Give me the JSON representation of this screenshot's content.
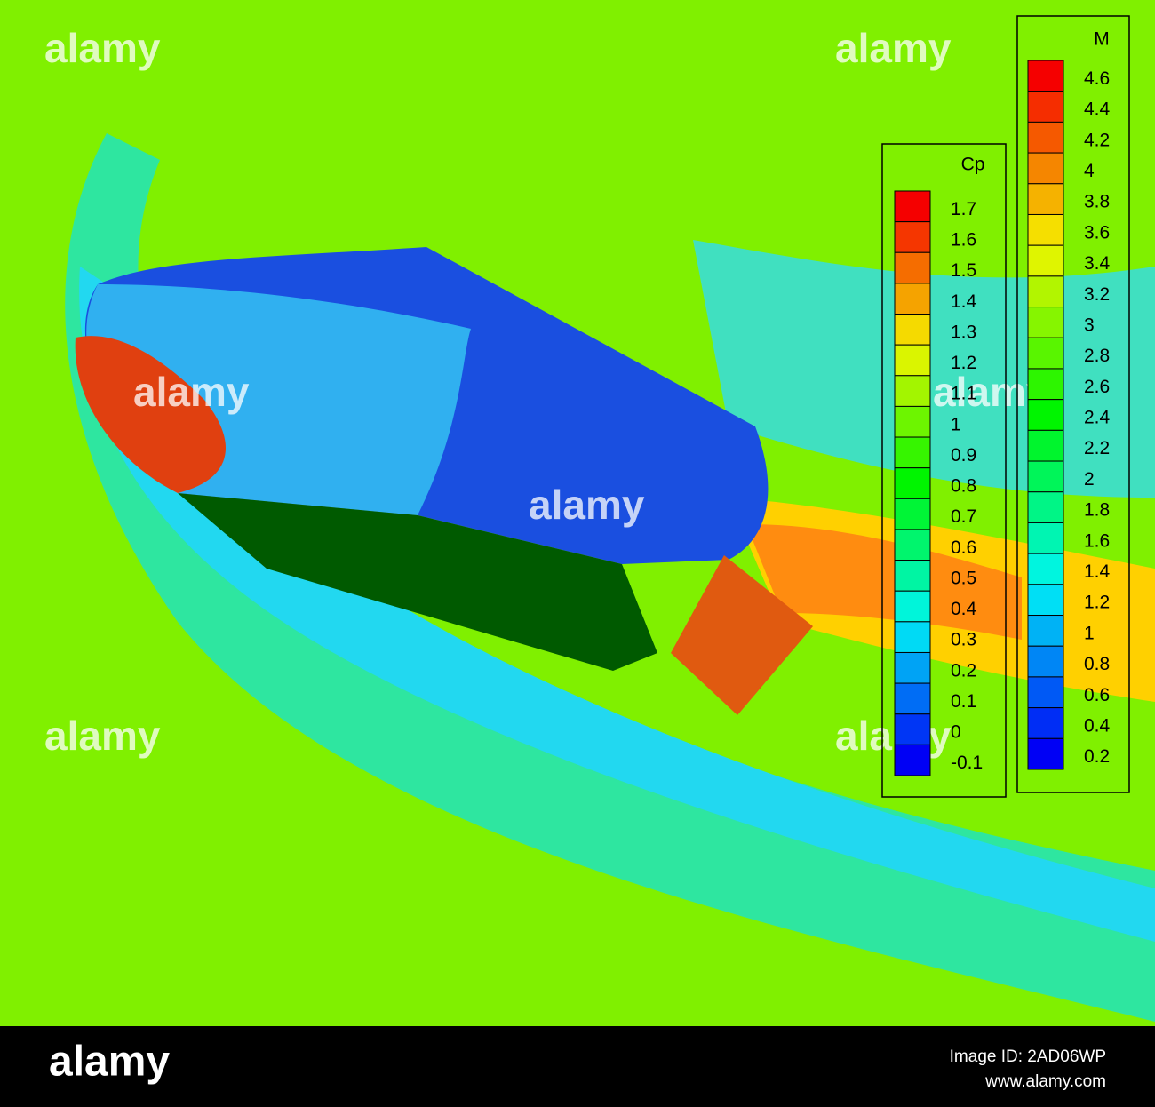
{
  "legends": [
    {
      "title": "Cp",
      "labels": [
        1.7,
        1.6,
        1.5,
        1.4,
        1.3,
        1.2,
        1.1,
        1,
        0.9,
        0.8,
        0.7,
        0.6,
        0.5,
        0.4,
        0.3,
        0.2,
        0.1,
        0,
        -0.1
      ]
    },
    {
      "title": "M",
      "labels": [
        4.6,
        4.4,
        4.2,
        4,
        3.8,
        3.6,
        3.4,
        3.2,
        3,
        2.8,
        2.6,
        2.4,
        2.2,
        2,
        1.8,
        1.6,
        1.4,
        1.2,
        1,
        0.8,
        0.6,
        0.4,
        0.2
      ]
    }
  ],
  "watermark": "alamy",
  "footer": {
    "logo": "alamy",
    "image_id": "Image ID: 2AD06WP",
    "url": "www.alamy.com"
  }
}
